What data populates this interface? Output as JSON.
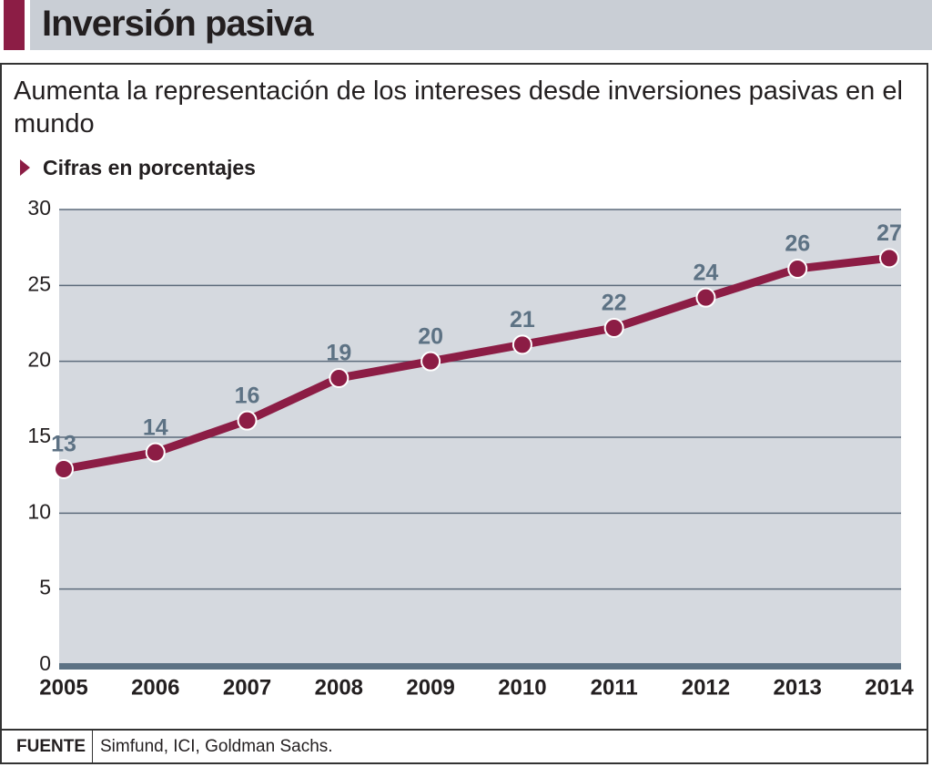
{
  "header": {
    "title": "Inversión pasiva"
  },
  "chart_data": {
    "type": "line",
    "subtitle": "Aumenta la representación de los intereses desde inversiones pasivas en el mundo",
    "y_label": "Cifras en porcentajes",
    "categories": [
      "2005",
      "2006",
      "2007",
      "2008",
      "2009",
      "2010",
      "2011",
      "2012",
      "2013",
      "2014"
    ],
    "values": [
      12.9,
      14,
      16.1,
      18.9,
      20,
      21.1,
      22.2,
      24.2,
      26.1,
      26.8
    ],
    "value_labels": [
      "13",
      "14",
      "16",
      "19",
      "20",
      "21",
      "22",
      "24",
      "26",
      "27"
    ],
    "color": "#8c1d45",
    "ylim": [
      0,
      30
    ],
    "yticks": [
      0,
      5,
      10,
      15,
      20,
      25,
      30
    ],
    "grid": true
  },
  "footer": {
    "source_label": "FUENTE",
    "source": "Simfund, ICI, Goldman Sachs."
  }
}
